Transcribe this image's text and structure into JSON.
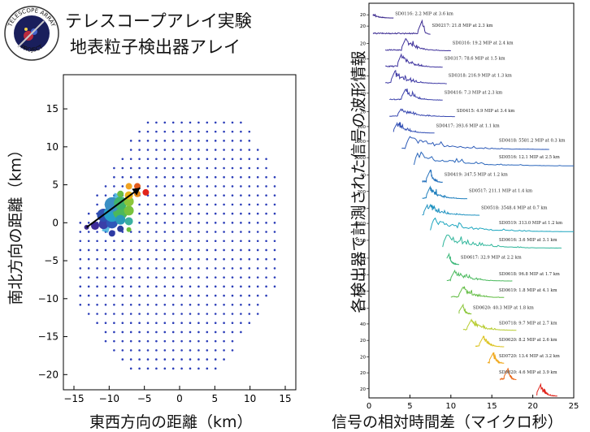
{
  "header": {
    "title_line1": "テレスコープアレイ実験",
    "title_line2": "地表粒子検出器アレイ",
    "logo_text_top": "TELESCOPE ARRAY",
    "logo_text_bottom": "PROJECT"
  },
  "chart_data": [
    {
      "type": "scatter",
      "xlabel": "東西方向の距離（km）",
      "ylabel": "南北方向の距離（km）",
      "xlim": [
        -16.5,
        16.5
      ],
      "ylim": [
        -22,
        19.5
      ],
      "xticks": [
        -15,
        -10,
        -5,
        0,
        5,
        10,
        15
      ],
      "yticks": [
        15,
        10,
        5,
        0,
        -5,
        -10,
        -15,
        -20
      ],
      "grid": false,
      "array_color": "#2b3db8",
      "array_spacing_km": 1.2,
      "event_hits": [
        {
          "x": -13.2,
          "y": -0.6,
          "size": 3,
          "color": "#3b2a8c"
        },
        {
          "x": -12.0,
          "y": -0.4,
          "size": 5,
          "color": "#3f2d99"
        },
        {
          "x": -10.8,
          "y": -0.2,
          "size": 6,
          "color": "#3a3fa8"
        },
        {
          "x": -9.6,
          "y": 0.0,
          "size": 7,
          "color": "#2f57b8"
        },
        {
          "x": -10.8,
          "y": 1.0,
          "size": 8,
          "color": "#2e4fb0"
        },
        {
          "x": -9.6,
          "y": 1.2,
          "size": 10,
          "color": "#27a0c9"
        },
        {
          "x": -8.4,
          "y": 1.4,
          "size": 9,
          "color": "#4cb85a"
        },
        {
          "x": -7.2,
          "y": 1.6,
          "size": 6,
          "color": "#79c23d"
        },
        {
          "x": -9.6,
          "y": 2.4,
          "size": 9,
          "color": "#3a8fc4"
        },
        {
          "x": -8.4,
          "y": 2.6,
          "size": 8,
          "color": "#3fb36d"
        },
        {
          "x": -7.2,
          "y": 2.8,
          "size": 6,
          "color": "#8cc63a"
        },
        {
          "x": -8.4,
          "y": 3.8,
          "size": 4,
          "color": "#6bbd44"
        },
        {
          "x": -7.2,
          "y": 3.6,
          "size": 5,
          "color": "#e8b21c"
        },
        {
          "x": -6.0,
          "y": 3.8,
          "size": 4,
          "color": "#e88a1a"
        },
        {
          "x": -4.8,
          "y": 4.0,
          "size": 4,
          "color": "#e2231a"
        },
        {
          "x": -7.2,
          "y": 4.8,
          "size": 4,
          "color": "#f0a321"
        },
        {
          "x": -6.0,
          "y": 4.8,
          "size": 4,
          "color": "#e25a1c"
        },
        {
          "x": -8.4,
          "y": 0.4,
          "size": 6,
          "color": "#2a9ab8"
        },
        {
          "x": -7.2,
          "y": 0.2,
          "size": 5,
          "color": "#3bb0a0"
        },
        {
          "x": -8.4,
          "y": -0.8,
          "size": 4,
          "color": "#2c3f9e"
        },
        {
          "x": -7.2,
          "y": -0.9,
          "size": 3,
          "color": "#6bbf3b"
        },
        {
          "x": -9.6,
          "y": -1.4,
          "size": 4,
          "color": "#2d3aa4"
        }
      ],
      "arrow": {
        "from": [
          -13.2,
          -0.6
        ],
        "to": [
          -5.6,
          4.6
        ],
        "color": "#000000"
      }
    },
    {
      "type": "line",
      "xlabel": "信号の相対時間差（マイクロ秒）",
      "ylabel": "各検出器で計測された信号の波形情報",
      "xlim": [
        0,
        25
      ],
      "xticks": [
        0,
        5,
        10,
        15,
        20,
        25
      ],
      "series": [
        {
          "name": "SD0116: 2.2 MIP at 3.6 km",
          "t0": 0.5,
          "t1": 3.0,
          "peak": 0.3,
          "amp": 0.35,
          "color": "#3d2b8e",
          "ytick": "20"
        },
        {
          "name": "SD0217: 21.8 MIP at 2.3 km",
          "t0": 0.5,
          "t1": 7.5,
          "peak": 6.5,
          "amp": 0.9,
          "color": "#3d2d93",
          "ytick": "20"
        },
        {
          "name": "SD0316: 19.2 MIP at 2.4 km",
          "t0": 2.0,
          "t1": 10.0,
          "peak": 4.5,
          "amp": 0.8,
          "color": "#3e309a",
          "ytick": "20"
        },
        {
          "name": "SD0317: 78.6 MIP at 1.5 km",
          "t0": 2.0,
          "t1": 9.0,
          "peak": 4.0,
          "amp": 0.9,
          "color": "#3f349f",
          "ytick": "20"
        },
        {
          "name": "SD0318: 216.9 MIP at 1.3 km",
          "t0": 2.0,
          "t1": 9.5,
          "peak": 3.2,
          "amp": 0.85,
          "color": "#3f3aa5",
          "ytick": "50"
        },
        {
          "name": "SD0416: 7.3 MIP at 2.3 km",
          "t0": 2.5,
          "t1": 9.0,
          "peak": 4.5,
          "amp": 0.75,
          "color": "#3c41ab",
          "ytick": "20"
        },
        {
          "name": "SD0415: 4.9 MIP at 3.4 km",
          "t0": 2.5,
          "t1": 10.5,
          "peak": 4.0,
          "amp": 0.55,
          "color": "#3848b0",
          "ytick": "20"
        },
        {
          "name": "SD0417: 393.6 MIP at 1.1 km",
          "t0": 3.0,
          "t1": 8.0,
          "peak": 3.5,
          "amp": 0.7,
          "color": "#3451b5",
          "ytick": "100"
        },
        {
          "name": "SD0418: 5581.2 MIP at 0.3 km",
          "t0": 4.0,
          "t1": 22.0,
          "peak": 5.0,
          "amp": 0.9,
          "color": "#2e5bb8",
          "ytick": "1000"
        },
        {
          "name": "SD0516: 12.1 MIP at 2.5 km",
          "t0": 5.5,
          "t1": 25.0,
          "peak": 6.0,
          "amp": 0.9,
          "color": "#2a66bb",
          "ytick": "2000"
        },
        {
          "name": "SD0419: 347.5 MIP at 1.2 km",
          "t0": 6.5,
          "t1": 9.0,
          "peak": 7.5,
          "amp": 0.8,
          "color": "#2672bd",
          "ytick": "40"
        },
        {
          "name": "SD0517: 211.1 MIP at 1.4 km",
          "t0": 6.5,
          "t1": 12.0,
          "peak": 7.5,
          "amp": 0.8,
          "color": "#2281be",
          "ytick": "200"
        },
        {
          "name": "SD0518: 3548.4 MIP at 0.7 km",
          "t0": 6.5,
          "t1": 13.5,
          "peak": 7.2,
          "amp": 0.75,
          "color": "#1f92c0",
          "ytick": "150"
        },
        {
          "name": "SD0519: 313.0 MIP at 1.2 km",
          "t0": 7.5,
          "t1": 25.0,
          "peak": 8.0,
          "amp": 0.9,
          "color": "#1da6bf",
          "ytick": "4000"
        },
        {
          "name": "SD0616: 3.6 MIP at 3.1 km",
          "t0": 9.0,
          "t1": 23.5,
          "peak": 9.5,
          "amp": 0.85,
          "color": "#2db59a",
          "ytick": "150"
        },
        {
          "name": "SD0617: 32.9 MIP at 2.2 km",
          "t0": 9.5,
          "t1": 11.0,
          "peak": 9.8,
          "amp": 0.7,
          "color": "#3db87a",
          "ytick": "20"
        },
        {
          "name": "SD0618: 96.8 MIP at 1.7 km",
          "t0": 9.5,
          "t1": 17.5,
          "peak": 10.5,
          "amp": 0.7,
          "color": "#4bba5e",
          "ytick": "40"
        },
        {
          "name": "SD0619: 1.8 MIP at 4.1 km",
          "t0": 10.0,
          "t1": 16.5,
          "peak": 11.5,
          "amp": 0.7,
          "color": "#63bd45",
          "ytick": "100"
        },
        {
          "name": "SD0620: 40.3 MIP at 1.8 km",
          "t0": 11.0,
          "t1": 12.5,
          "peak": 11.5,
          "amp": 0.6,
          "color": "#8cc63b",
          "ytick": "20"
        },
        {
          "name": "SD0718: 9.7 MIP at 2.7 km",
          "t0": 11.5,
          "t1": 18.0,
          "peak": 12.5,
          "amp": 0.7,
          "color": "#b7cc2f",
          "ytick": "40"
        },
        {
          "name": "SD0620: 8.2 MIP at 2.6 km",
          "t0": 13.0,
          "t1": 16.5,
          "peak": 14.0,
          "amp": 0.7,
          "color": "#dcc321",
          "ytick": "20"
        },
        {
          "name": "SD0720: 13.4 MIP at 3.2 km",
          "t0": 14.5,
          "t1": 16.5,
          "peak": 15.2,
          "amp": 0.7,
          "color": "#f0a91e",
          "ytick": "20"
        },
        {
          "name": "SD0820: 4.6 MIP at 3.9 km",
          "t0": 16.0,
          "t1": 18.0,
          "peak": 17.0,
          "amp": 0.75,
          "color": "#ea6a1c",
          "ytick": "20"
        },
        {
          "name": "",
          "t0": 20.5,
          "t1": 23.0,
          "peak": 21.0,
          "amp": 0.8,
          "color": "#e0241b",
          "ytick": "20"
        }
      ]
    }
  ]
}
